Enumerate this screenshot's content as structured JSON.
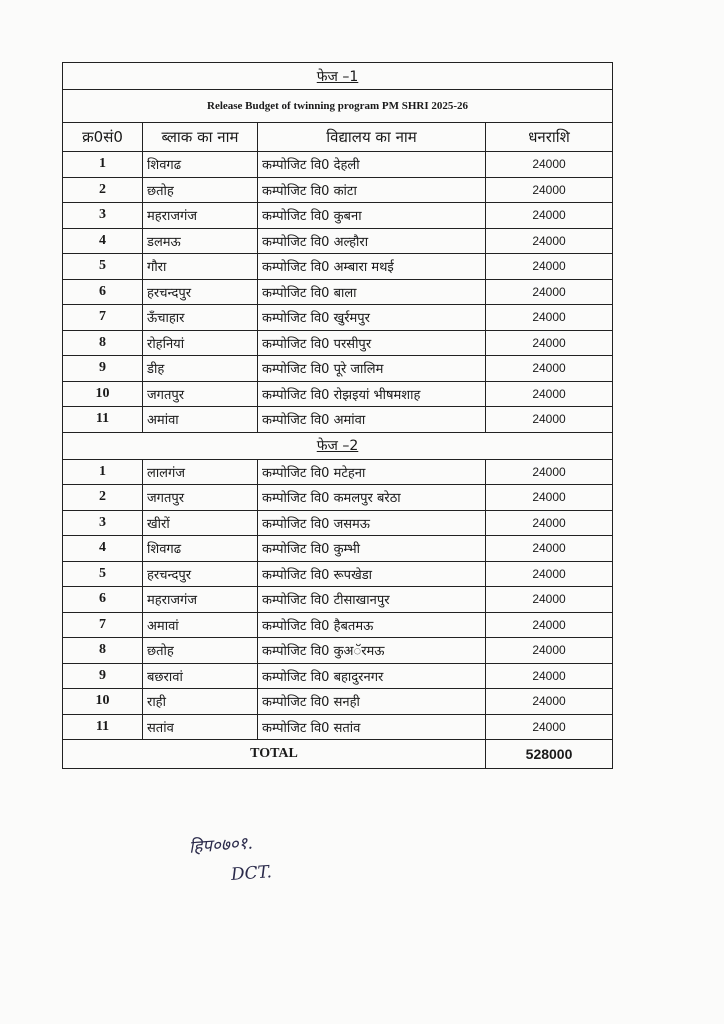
{
  "phase1_title": "फेज –1",
  "release_title": "Release Budget of twinning program PM SHRI 2025-26",
  "headers": {
    "sno": "क्र0सं0",
    "block": "ब्लाक का नाम",
    "school": "विद्यालय का नाम",
    "amount": "धनराशि"
  },
  "phase1_rows": [
    {
      "sno": "1",
      "block": "शिवगढ",
      "school": "कम्पोजिट वि0 देहली",
      "amount": "24000"
    },
    {
      "sno": "2",
      "block": "छतोह",
      "school": "कम्पोजिट वि0 कांटा",
      "amount": "24000"
    },
    {
      "sno": "3",
      "block": "महराजगंज",
      "school": "कम्पोजिट वि0 कुबना",
      "amount": "24000"
    },
    {
      "sno": "4",
      "block": "डलमऊ",
      "school": "कम्पोजिट वि0 अल्हौरा",
      "amount": "24000"
    },
    {
      "sno": "5",
      "block": "गौरा",
      "school": "कम्पोजिट वि0 अम्बारा मथई",
      "amount": "24000"
    },
    {
      "sno": "6",
      "block": "हरचन्दपुर",
      "school": "कम्पोजिट वि0 बाला",
      "amount": "24000"
    },
    {
      "sno": "7",
      "block": "ऊँचाहार",
      "school": "कम्पोजिट वि0 खुर्रमपुर",
      "amount": "24000"
    },
    {
      "sno": "8",
      "block": "रोहनियां",
      "school": "कम्पोजिट वि0 परसीपुर",
      "amount": "24000"
    },
    {
      "sno": "9",
      "block": "डीह",
      "school": "कम्पोजिट वि0 पूरे जालिम",
      "amount": "24000"
    },
    {
      "sno": "10",
      "block": "जगतपुर",
      "school": "कम्पोजिट वि0 रोझइयां भीषमशाह",
      "amount": "24000"
    },
    {
      "sno": "11",
      "block": "अमांवा",
      "school": "कम्पोजिट वि0 अमांवा",
      "amount": "24000"
    }
  ],
  "phase2_title": "फेज –2",
  "phase2_rows": [
    {
      "sno": "1",
      "block": "लालगंज",
      "school": "कम्पोजिट वि0 मटेहना",
      "amount": "24000"
    },
    {
      "sno": "2",
      "block": "जगतपुर",
      "school": "कम्पोजिट वि0 कमलपुर बरेठा",
      "amount": "24000"
    },
    {
      "sno": "3",
      "block": "खीरों",
      "school": "कम्पोजिट वि0 जसमऊ",
      "amount": "24000"
    },
    {
      "sno": "4",
      "block": "शिवगढ",
      "school": "कम्पोजिट वि0 कुम्भी",
      "amount": "24000"
    },
    {
      "sno": "5",
      "block": "हरचन्दपुर",
      "school": "कम्पोजिट वि0 रूपखेडा",
      "amount": "24000"
    },
    {
      "sno": "6",
      "block": "महराजगंज",
      "school": "कम्पोजिट वि0 टीसाखानपुर",
      "amount": "24000"
    },
    {
      "sno": "7",
      "block": "अमावां",
      "school": "कम्पोजिट वि0 हैबतमऊ",
      "amount": "24000"
    },
    {
      "sno": "8",
      "block": "छतोह",
      "school": "कम्पोजिट वि0 कुअॅरमऊ",
      "amount": "24000"
    },
    {
      "sno": "9",
      "block": "बछरावां",
      "school": "कम्पोजिट वि0 बहादुरनगर",
      "amount": "24000"
    },
    {
      "sno": "10",
      "block": "राही",
      "school": "कम्पोजिट वि0 सनही",
      "amount": "24000"
    },
    {
      "sno": "11",
      "block": "सतांव",
      "school": "कम्पोजिट वि0 सतांव",
      "amount": "24000"
    }
  ],
  "total": {
    "label": "TOTAL",
    "value": "528000"
  },
  "signature": {
    "line1": "हिप०७०१.",
    "line2": "DCT."
  }
}
